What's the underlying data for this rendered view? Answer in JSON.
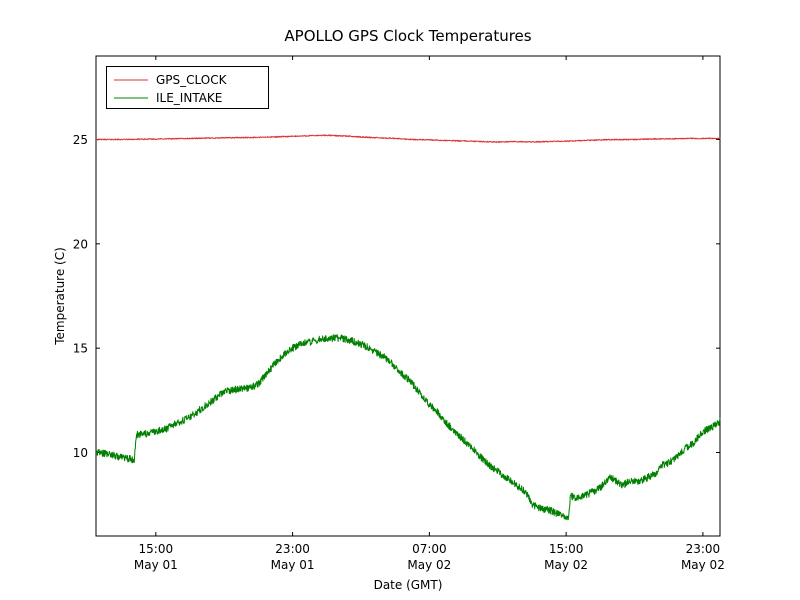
{
  "chart_data": {
    "type": "line",
    "title": "APOLLO GPS Clock Temperatures",
    "xlabel": "Date (GMT)",
    "ylabel": "Temperature (C)",
    "x_unit": "hours since May 01 00:00 GMT",
    "xlim": [
      11.5,
      48.0
    ],
    "ylim": [
      6.0,
      29.0
    ],
    "grid": false,
    "yticks": [
      10,
      15,
      20,
      25
    ],
    "xticks": [
      {
        "value": 15,
        "time": "15:00",
        "date": "May 01"
      },
      {
        "value": 23,
        "time": "23:00",
        "date": "May 01"
      },
      {
        "value": 31,
        "time": "07:00",
        "date": "May 02"
      },
      {
        "value": 39,
        "time": "15:00",
        "date": "May 02"
      },
      {
        "value": 47,
        "time": "23:00",
        "date": "May 02"
      }
    ],
    "legend": {
      "position": "upper left"
    },
    "series": [
      {
        "name": "GPS_CLOCK",
        "color": "#dd3333",
        "noise_amplitude": 0.025,
        "points": [
          [
            11.5,
            25.0
          ],
          [
            13,
            25.0
          ],
          [
            15,
            25.02
          ],
          [
            17,
            25.05
          ],
          [
            19,
            25.08
          ],
          [
            21,
            25.1
          ],
          [
            23,
            25.15
          ],
          [
            24,
            25.18
          ],
          [
            25,
            25.2
          ],
          [
            26,
            25.17
          ],
          [
            27,
            25.12
          ],
          [
            28,
            25.08
          ],
          [
            29,
            25.05
          ],
          [
            30,
            25.0
          ],
          [
            31,
            24.98
          ],
          [
            32,
            24.95
          ],
          [
            33,
            24.93
          ],
          [
            34,
            24.9
          ],
          [
            35,
            24.88
          ],
          [
            36,
            24.9
          ],
          [
            37,
            24.88
          ],
          [
            38,
            24.9
          ],
          [
            39,
            24.92
          ],
          [
            40,
            24.95
          ],
          [
            41,
            24.98
          ],
          [
            42,
            25.0
          ],
          [
            43,
            25.0
          ],
          [
            44,
            25.02
          ],
          [
            45,
            25.03
          ],
          [
            46,
            25.05
          ],
          [
            47,
            25.05
          ],
          [
            48,
            25.05
          ]
        ]
      },
      {
        "name": "ILE_INTAKE",
        "color": "#008000",
        "noise_amplitude": 0.17,
        "points": [
          [
            11.5,
            10.0
          ],
          [
            12.0,
            9.95
          ],
          [
            12.5,
            9.9
          ],
          [
            13.0,
            9.75
          ],
          [
            13.5,
            9.7
          ],
          [
            13.75,
            9.65
          ],
          [
            13.85,
            10.85
          ],
          [
            14.5,
            10.9
          ],
          [
            15.0,
            11.0
          ],
          [
            15.5,
            11.1
          ],
          [
            16.0,
            11.3
          ],
          [
            16.5,
            11.5
          ],
          [
            17.0,
            11.7
          ],
          [
            17.5,
            12.0
          ],
          [
            18.0,
            12.3
          ],
          [
            18.5,
            12.6
          ],
          [
            19.0,
            12.9
          ],
          [
            19.5,
            13.0
          ],
          [
            20.0,
            13.05
          ],
          [
            20.5,
            13.1
          ],
          [
            21.0,
            13.3
          ],
          [
            21.5,
            13.8
          ],
          [
            22.0,
            14.3
          ],
          [
            22.5,
            14.7
          ],
          [
            23.0,
            15.0
          ],
          [
            23.5,
            15.2
          ],
          [
            24.0,
            15.3
          ],
          [
            24.5,
            15.4
          ],
          [
            25.0,
            15.45
          ],
          [
            25.5,
            15.5
          ],
          [
            26.0,
            15.45
          ],
          [
            26.5,
            15.35
          ],
          [
            27.0,
            15.2
          ],
          [
            27.5,
            15.0
          ],
          [
            28.0,
            14.75
          ],
          [
            28.5,
            14.5
          ],
          [
            29.0,
            14.1
          ],
          [
            29.5,
            13.7
          ],
          [
            30.0,
            13.3
          ],
          [
            30.5,
            12.8
          ],
          [
            31.0,
            12.3
          ],
          [
            31.5,
            11.9
          ],
          [
            32.0,
            11.4
          ],
          [
            32.5,
            11.0
          ],
          [
            33.0,
            10.6
          ],
          [
            33.5,
            10.2
          ],
          [
            34.0,
            9.8
          ],
          [
            34.5,
            9.4
          ],
          [
            35.0,
            9.1
          ],
          [
            35.5,
            8.8
          ],
          [
            36.0,
            8.5
          ],
          [
            36.5,
            8.2
          ],
          [
            36.8,
            7.9
          ],
          [
            37.0,
            7.5
          ],
          [
            37.3,
            7.4
          ],
          [
            37.6,
            7.3
          ],
          [
            38.0,
            7.25
          ],
          [
            38.4,
            7.1
          ],
          [
            38.8,
            7.0
          ],
          [
            39.0,
            6.9
          ],
          [
            39.15,
            6.85
          ],
          [
            39.25,
            7.9
          ],
          [
            39.5,
            7.85
          ],
          [
            40.0,
            7.9
          ],
          [
            40.5,
            8.1
          ],
          [
            41.0,
            8.3
          ],
          [
            41.3,
            8.6
          ],
          [
            41.6,
            8.8
          ],
          [
            42.0,
            8.6
          ],
          [
            42.3,
            8.4
          ],
          [
            42.6,
            8.6
          ],
          [
            43.0,
            8.6
          ],
          [
            43.5,
            8.7
          ],
          [
            44.0,
            8.9
          ],
          [
            44.3,
            9.0
          ],
          [
            44.6,
            9.4
          ],
          [
            45.0,
            9.5
          ],
          [
            45.5,
            9.8
          ],
          [
            46.0,
            10.2
          ],
          [
            46.5,
            10.5
          ],
          [
            47.0,
            11.0
          ],
          [
            47.5,
            11.2
          ],
          [
            48.0,
            11.5
          ]
        ]
      }
    ]
  }
}
